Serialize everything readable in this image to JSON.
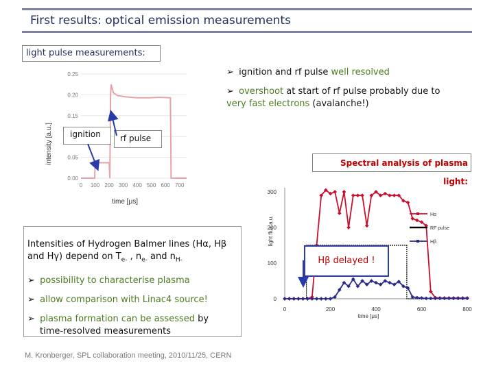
{
  "slide": {
    "title": "First results: optical emission measurements",
    "section_label": "light pulse measurements:",
    "footer": "M. Kronberger, SPL collaboration meeting, 2010/11/25, CERN"
  },
  "bullets_right": {
    "b1_pre": "ignition and rf pulse ",
    "b1_hl": "well resolved",
    "b2_hl": "overshoot",
    "b2_mid": " at start of rf pulse probably due to ",
    "b2_hl2": "very fast electrons",
    "b2_post": " (avalanche!)"
  },
  "intensities": {
    "intro_line1": "Intensities of Hydrogen Balmer lines (Hα, Hβ",
    "intro_line2_a": "and Hγ) depend on T",
    "sub_e": "e-",
    "sep1": " , n",
    "sep2": " and n",
    "sub_h": "H-",
    "b1": "possibility to characterise plasma",
    "b2": "allow comparison with Linac4 source!",
    "b3_hl": "plasma formation can be assessed",
    "b3_post": " by",
    "b3_line2": "time-resolved measurements"
  },
  "spectral_title": "Spectral analysis of plasma light:",
  "hb_delayed": "Hβ delayed !",
  "colors": {
    "accent_green": "#4d7a1e",
    "red": "#c00000",
    "blue": "#2a2a8a",
    "title": "#1f2d5a"
  },
  "chart_data": [
    {
      "type": "line",
      "xlabel": "time [μs]",
      "ylabel": "intensity [a.u.]",
      "xticks": [
        "0",
        "100",
        "200",
        "300",
        "400",
        "500",
        "600",
        "700"
      ],
      "yticks": [
        "0.00",
        "0.05",
        "0.10",
        "0.15",
        "0.20",
        "0.25"
      ],
      "xlim": [
        0,
        750
      ],
      "ylim": [
        0,
        0.25
      ],
      "annotations": [
        "ignition",
        "rf pulse"
      ],
      "series": [
        {
          "name": "",
          "x": [
            0,
            98,
            100,
            110,
            120,
            200,
            205,
            210,
            215,
            230,
            260,
            320,
            400,
            480,
            560,
            635,
            640,
            660,
            700,
            750
          ],
          "y": [
            0.0,
            0.0,
            0.035,
            0.04,
            0.037,
            0.037,
            0.0,
            0.2,
            0.225,
            0.205,
            0.198,
            0.195,
            0.193,
            0.193,
            0.194,
            0.193,
            0.0,
            0.0,
            0.0,
            0.0
          ]
        }
      ]
    },
    {
      "type": "line",
      "xlabel": "time  [μs]",
      "ylabel": "light flux a.u.",
      "xticks": [
        "0",
        "200",
        "400",
        "600",
        "800"
      ],
      "yticks": [
        "0",
        "100",
        "200",
        "300"
      ],
      "xlim": [
        0,
        800
      ],
      "ylim": [
        0,
        300
      ],
      "legend_position": "right",
      "series": [
        {
          "name": "Hα",
          "color": "#c8102e",
          "x": [
            0,
            20,
            40,
            60,
            80,
            100,
            120,
            140,
            160,
            180,
            200,
            220,
            240,
            260,
            280,
            300,
            320,
            340,
            360,
            380,
            400,
            420,
            440,
            460,
            480,
            500,
            520,
            540,
            560,
            580,
            600,
            620,
            640,
            660,
            680,
            700,
            720,
            740,
            760,
            780,
            800
          ],
          "y": [
            0,
            0,
            0,
            0,
            0,
            0,
            5,
            150,
            290,
            305,
            295,
            300,
            240,
            300,
            200,
            290,
            290,
            290,
            205,
            290,
            300,
            290,
            295,
            290,
            290,
            290,
            275,
            270,
            225,
            220,
            215,
            205,
            20,
            3,
            2,
            2,
            2,
            2,
            2,
            2,
            2
          ]
        },
        {
          "name": "RF pulse",
          "color": "#000000",
          "x": [
            0,
            95,
            95,
            535,
            535,
            800
          ],
          "y": [
            0,
            0,
            150,
            150,
            0,
            0
          ]
        },
        {
          "name": "Hβ",
          "color": "#2a2a8a",
          "x": [
            0,
            20,
            40,
            60,
            80,
            100,
            120,
            140,
            160,
            180,
            200,
            220,
            240,
            260,
            280,
            300,
            320,
            340,
            360,
            380,
            400,
            420,
            440,
            460,
            480,
            500,
            520,
            540,
            560,
            580,
            600,
            620,
            640,
            660,
            680,
            700,
            720,
            740,
            760,
            780,
            800
          ],
          "y": [
            0,
            0,
            0,
            0,
            0,
            0,
            0,
            0,
            0,
            0,
            0,
            5,
            25,
            45,
            35,
            55,
            35,
            50,
            40,
            50,
            45,
            40,
            50,
            45,
            40,
            48,
            35,
            30,
            5,
            3,
            2,
            1,
            1,
            1,
            1,
            1,
            1,
            1,
            1,
            1,
            1
          ]
        }
      ]
    }
  ]
}
